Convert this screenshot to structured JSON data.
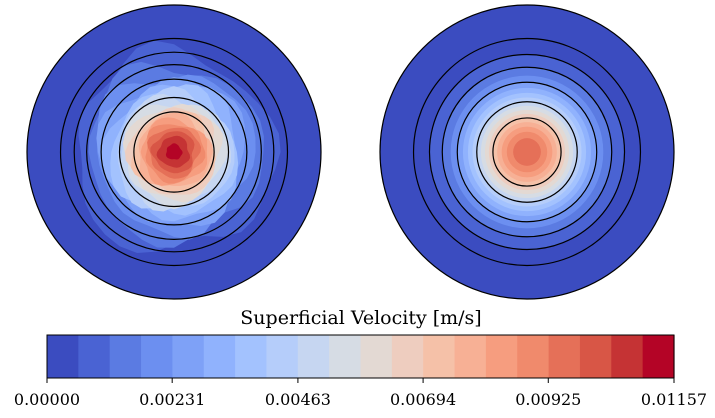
{
  "chart_data": {
    "type": "heatmap",
    "title": "",
    "colorbar": {
      "label": "Superficial Velocity [m/s]",
      "min": 0.0,
      "max": 0.01157,
      "levels": 20,
      "tick_values": [
        0.0,
        0.00231,
        0.00463,
        0.00694,
        0.00925,
        0.01157
      ],
      "tick_labels": [
        "0.00000",
        "0.00231",
        "0.00463",
        "0.00694",
        "0.00925",
        "0.01157"
      ],
      "colormap": "coolwarm",
      "colors": [
        "#3b4cc0",
        "#4a63d3",
        "#5b7be2",
        "#6c8ff0",
        "#7ea1f7",
        "#90b2fd",
        "#a3c2fe",
        "#b5cdfa",
        "#c6d6f1",
        "#d6dce4",
        "#e3d9d3",
        "#eecdbf",
        "#f5c1a8",
        "#f7b095",
        "#f69d7f",
        "#f08a6c",
        "#e57058",
        "#d85646",
        "#c53334",
        "#b40426"
      ]
    },
    "panels": [
      {
        "id": "left",
        "ring_levels": [
          0.0,
          0.00058,
          0.00116,
          0.00231,
          0.00463,
          0.00694
        ],
        "peak_value": 0.0112,
        "symmetry": "irregular"
      },
      {
        "id": "right",
        "ring_levels": [
          0.0,
          0.00058,
          0.00116,
          0.00231,
          0.00463,
          0.00694
        ],
        "peak_value": 0.0098,
        "symmetry": "axisymmetric"
      }
    ]
  }
}
